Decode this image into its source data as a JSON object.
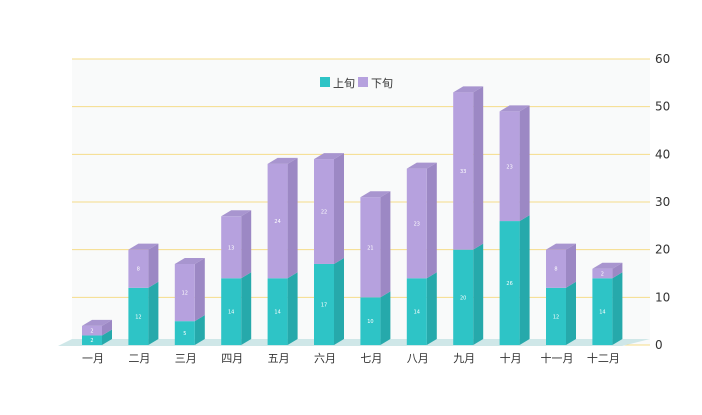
{
  "chart_data": {
    "type": "bar",
    "stacked": true,
    "three_d": true,
    "categories": [
      "一月",
      "二月",
      "三月",
      "四月",
      "五月",
      "六月",
      "七月",
      "八月",
      "九月",
      "十月",
      "十一月",
      "十二月"
    ],
    "series": [
      {
        "name": "上旬",
        "values": [
          2,
          12,
          5,
          14,
          14,
          17,
          10,
          14,
          20,
          26,
          12,
          14
        ]
      },
      {
        "name": "下旬",
        "values": [
          2,
          8,
          12,
          13,
          24,
          22,
          21,
          23,
          33,
          23,
          8,
          2
        ]
      }
    ],
    "ylim": [
      0,
      60
    ],
    "yticks": [
      0,
      10,
      20,
      30,
      40,
      50,
      60
    ],
    "y_axis_side": "right",
    "grid": true,
    "legend_position": "top-center",
    "colors": {
      "series": [
        "#2ec4c6",
        "#b6a1de"
      ],
      "series_side": [
        "#26a9ab",
        "#9c88c4"
      ],
      "series_top": [
        "#4dd0d2",
        "#a895cf"
      ],
      "gridline": "#f5dc8a",
      "plot_background": "#f9fafa",
      "floor": "#cfe7e8"
    }
  }
}
